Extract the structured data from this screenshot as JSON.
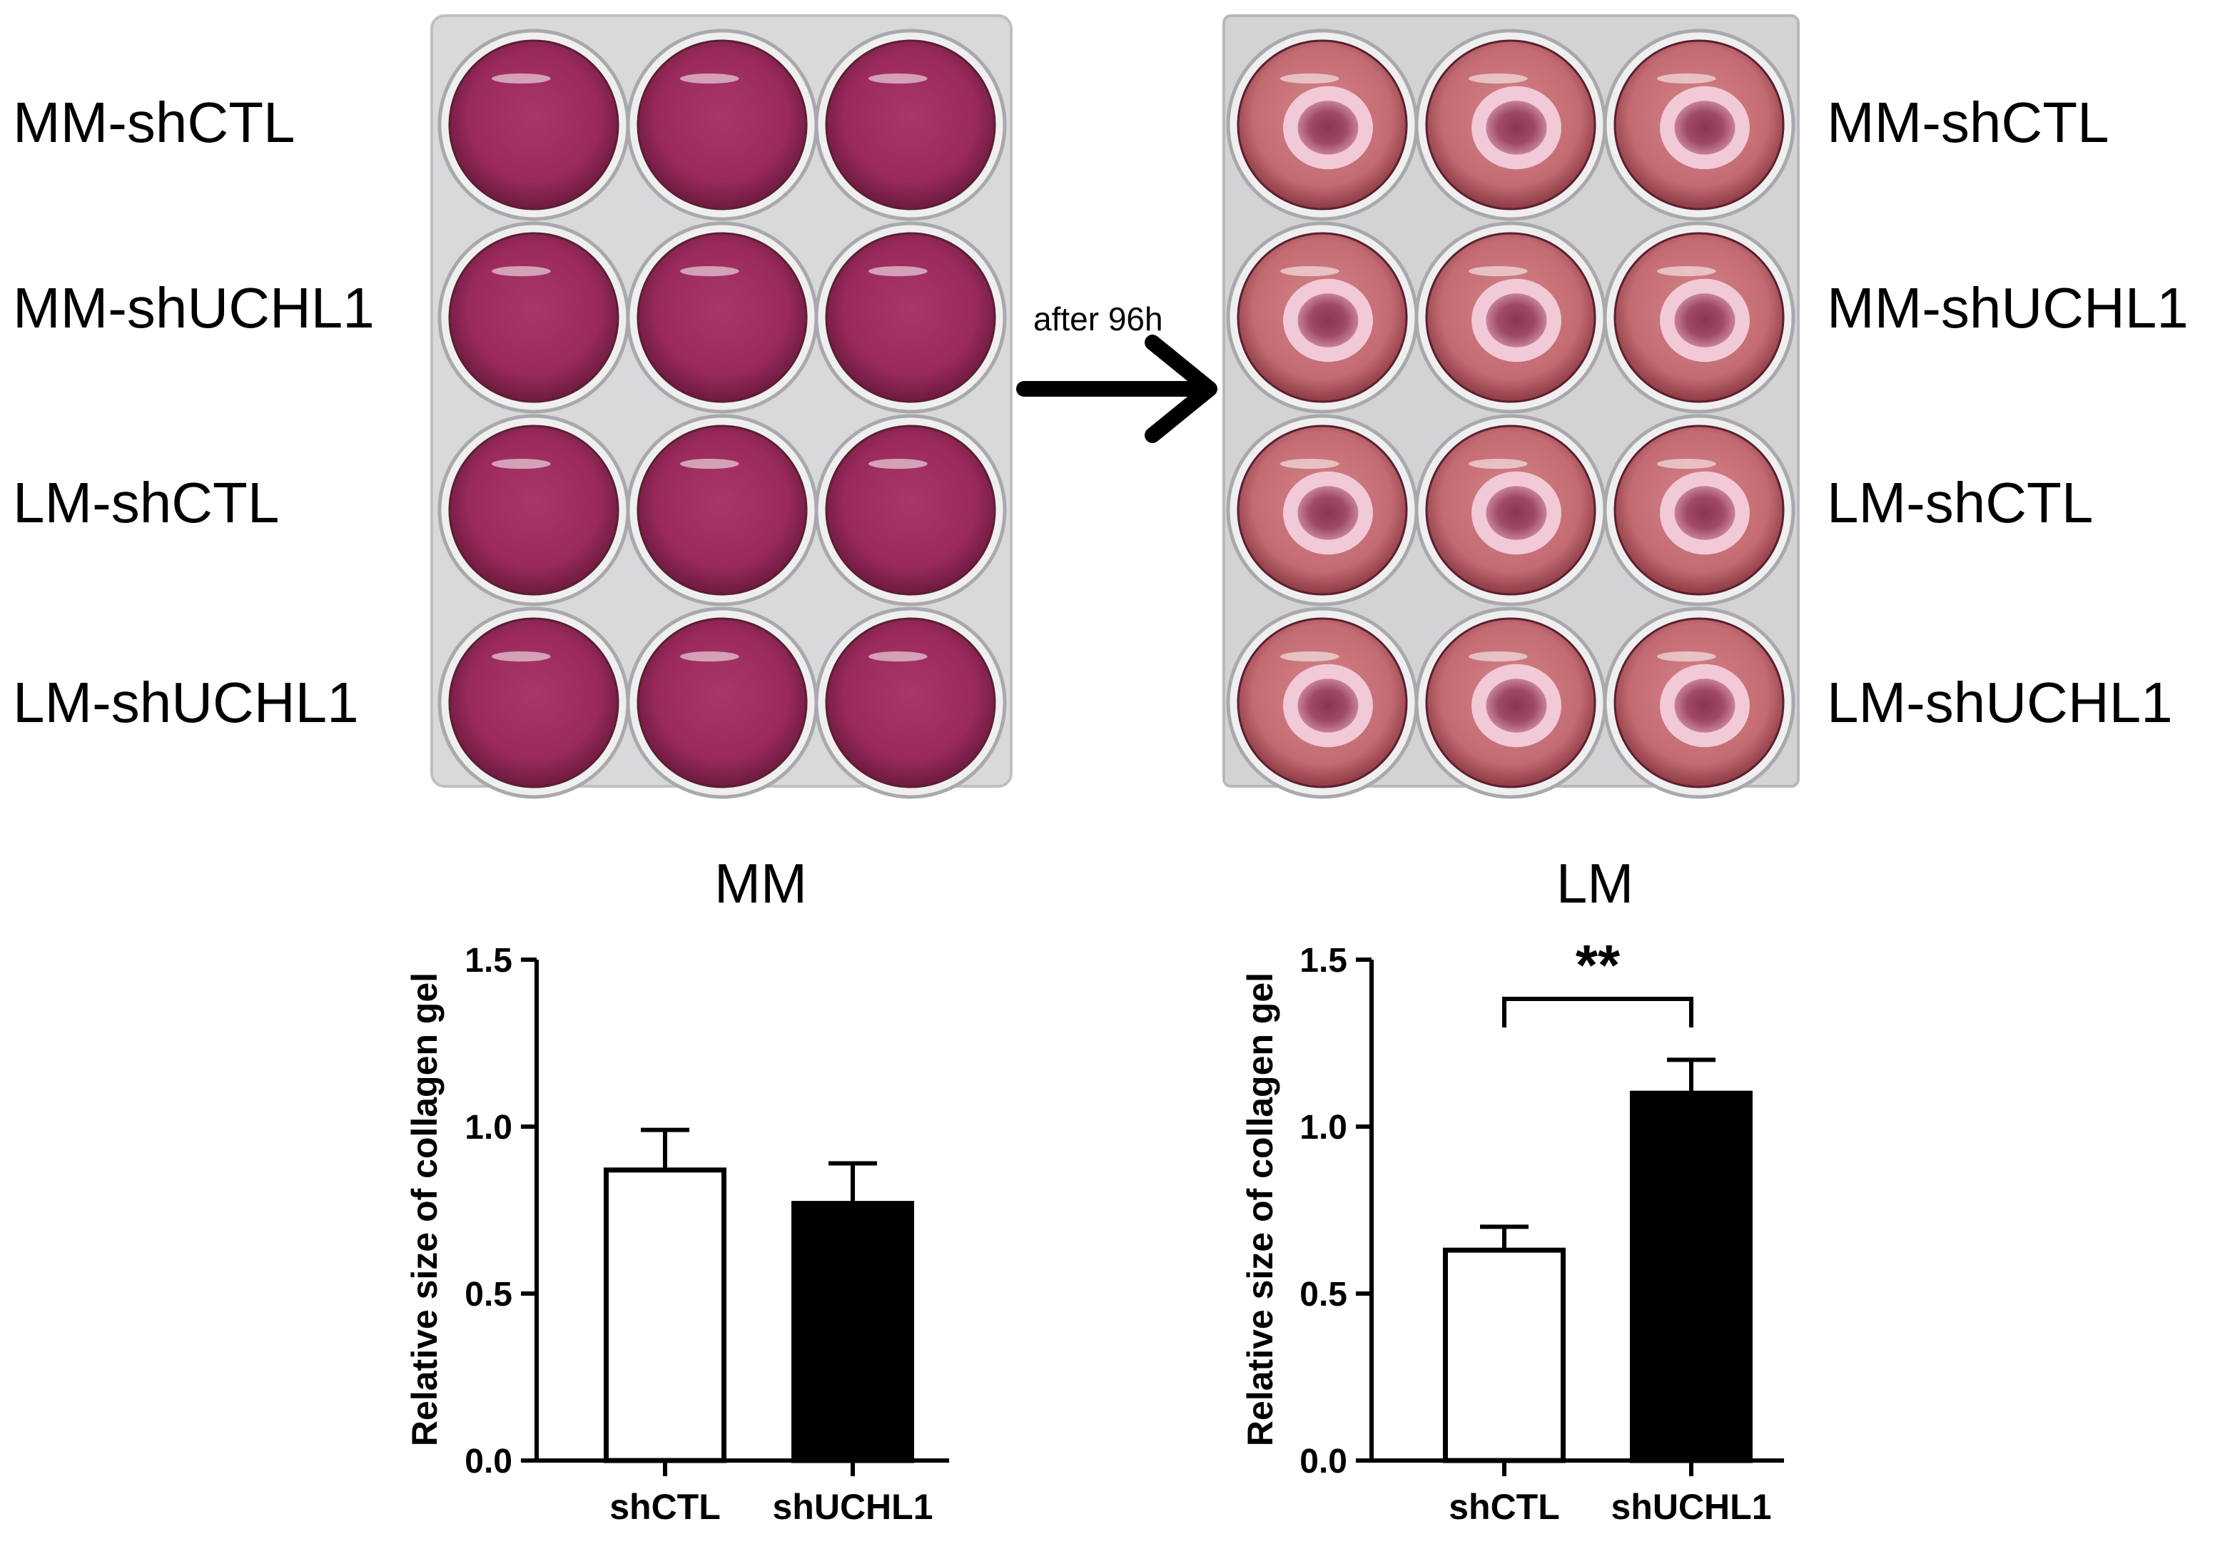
{
  "photos": {
    "left_plate": {
      "name": "before-plate-photo",
      "row_labels": [
        "MM-shCTL",
        "MM-shUCHL1",
        "LM-shCTL",
        "LM-shUCHL1"
      ],
      "medium_color": "#9c2a5a",
      "gel_shown": false
    },
    "right_plate": {
      "name": "after-plate-photo",
      "row_labels": [
        "MM-shCTL",
        "MM-shUCHL1",
        "LM-shCTL",
        "LM-shUCHL1"
      ],
      "medium_color": "#c9777d",
      "gel_shown": true
    }
  },
  "arrow": {
    "caption": "after 96h",
    "icon": "right-arrow-icon"
  },
  "chart_data": [
    {
      "type": "bar",
      "title": "MM",
      "ylabel": "Relative size of collagen gel",
      "xlabel": "",
      "categories": [
        "shCTL",
        "shUCHL1"
      ],
      "values": [
        0.87,
        0.77
      ],
      "errors": [
        0.12,
        0.12
      ],
      "bar_fill": [
        "#ffffff",
        "#000000"
      ],
      "ylim": [
        0.0,
        1.5
      ],
      "yticks": [
        "0.0",
        "0.5",
        "1.0",
        "1.5"
      ],
      "significance": null
    },
    {
      "type": "bar",
      "title": "LM",
      "ylabel": "Relative size of collagen gel",
      "xlabel": "",
      "categories": [
        "shCTL",
        "shUCHL1"
      ],
      "values": [
        0.63,
        1.1
      ],
      "errors": [
        0.07,
        0.1
      ],
      "bar_fill": [
        "#ffffff",
        "#000000"
      ],
      "ylim": [
        0.0,
        1.5
      ],
      "yticks": [
        "0.0",
        "0.5",
        "1.0",
        "1.5"
      ],
      "significance": {
        "pair": [
          "shCTL",
          "shUCHL1"
        ],
        "label": "**"
      }
    }
  ]
}
